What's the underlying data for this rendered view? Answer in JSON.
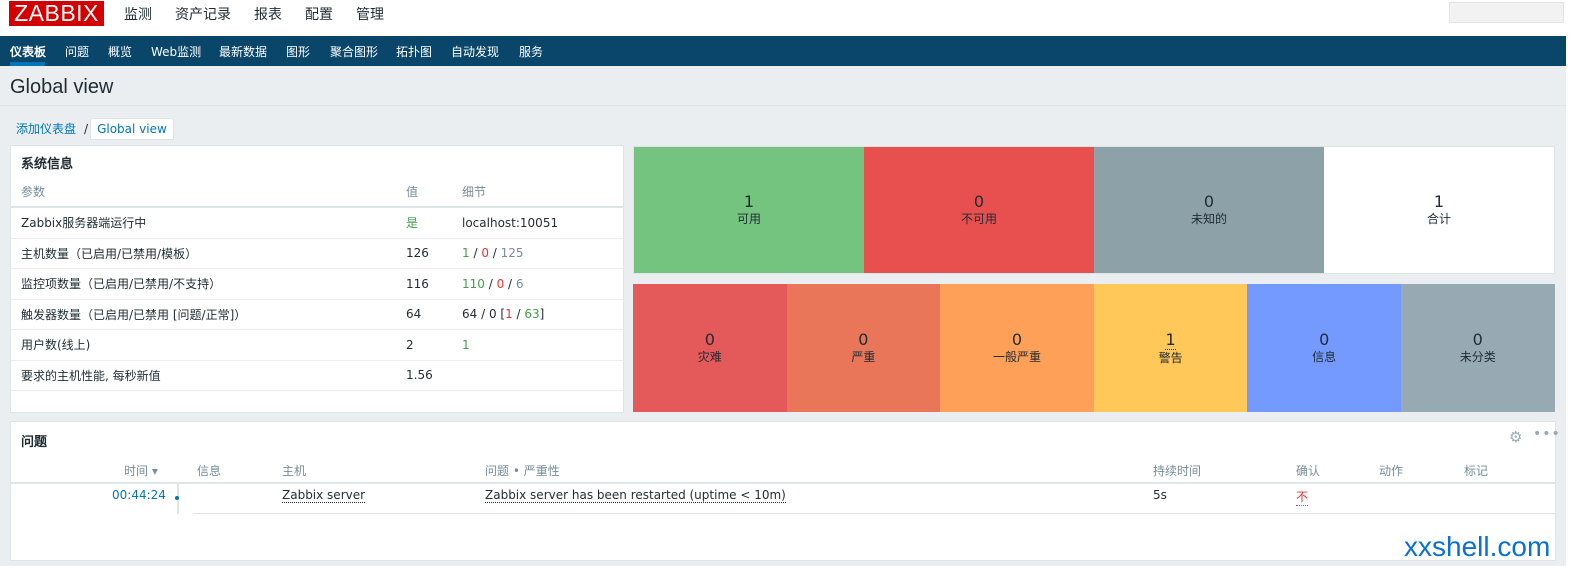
{
  "logo": "ZABBIX",
  "main_menu": [
    "监测",
    "资产记录",
    "报表",
    "配置",
    "管理"
  ],
  "sub_menu": [
    "仪表板",
    "问题",
    "概览",
    "Web监测",
    "最新数据",
    "图形",
    "聚合图形",
    "拓扑图",
    "自动发现",
    "服务"
  ],
  "page_title": "Global view",
  "breadcrumb": {
    "link": "添加仪表盘",
    "separator": "/",
    "current": "Global view"
  },
  "system_info": {
    "title": "系统信息",
    "headers": [
      "参数",
      "值",
      "细节"
    ],
    "rows": [
      {
        "param": "Zabbix服务器端运行中",
        "value": "是",
        "detail": "localhost:10051"
      },
      {
        "param": "主机数量（已启用/已禁用/模板）",
        "value": "126",
        "d1": "1",
        "d2": "0",
        "d3": "125"
      },
      {
        "param": "监控项数量（已启用/已禁用/不支持）",
        "value": "116",
        "d1": "110",
        "d2": "0",
        "d3": "6"
      },
      {
        "param": "触发器数量（已启用/已禁用 [问题/正常]）",
        "value": "64",
        "d_prefix": "64 / 0 [",
        "d1": "1",
        "d_mid": " / ",
        "d2": "63",
        "d_suffix": "]"
      },
      {
        "param": "用户数(线上)",
        "value": "2",
        "detail": "1"
      },
      {
        "param": "要求的主机性能, 每秒新值",
        "value": "1.56",
        "detail": ""
      }
    ]
  },
  "host_status": [
    {
      "num": "1",
      "label": "可用",
      "color": "#74c47f"
    },
    {
      "num": "0",
      "label": "不可用",
      "color": "#e85050"
    },
    {
      "num": "0",
      "label": "未知的",
      "color": "#8da1a8"
    },
    {
      "num": "1",
      "label": "合计",
      "color": "#ffffff"
    }
  ],
  "severity": [
    {
      "num": "0",
      "label": "灾难",
      "color": "#e45959"
    },
    {
      "num": "0",
      "label": "严重",
      "color": "#e97659"
    },
    {
      "num": "0",
      "label": "一般严重",
      "color": "#ffa059"
    },
    {
      "num": "1",
      "label": "警告",
      "color": "#ffc859"
    },
    {
      "num": "0",
      "label": "信息",
      "color": "#7499ff"
    },
    {
      "num": "0",
      "label": "未分类",
      "color": "#97aab3"
    }
  ],
  "problems": {
    "title": "问题",
    "headers": {
      "time": "时间 ▾",
      "info": "信息",
      "host": "主机",
      "problem": "问题 • 严重性",
      "duration": "持续时间",
      "ack": "确认",
      "actions": "动作",
      "tags": "标记"
    },
    "row": {
      "time": "00:44:24",
      "host": "Zabbix server",
      "problem": "Zabbix server has been restarted (uptime < 10m)",
      "duration": "5s",
      "ack": "不"
    }
  },
  "watermark": "xxshell.com"
}
